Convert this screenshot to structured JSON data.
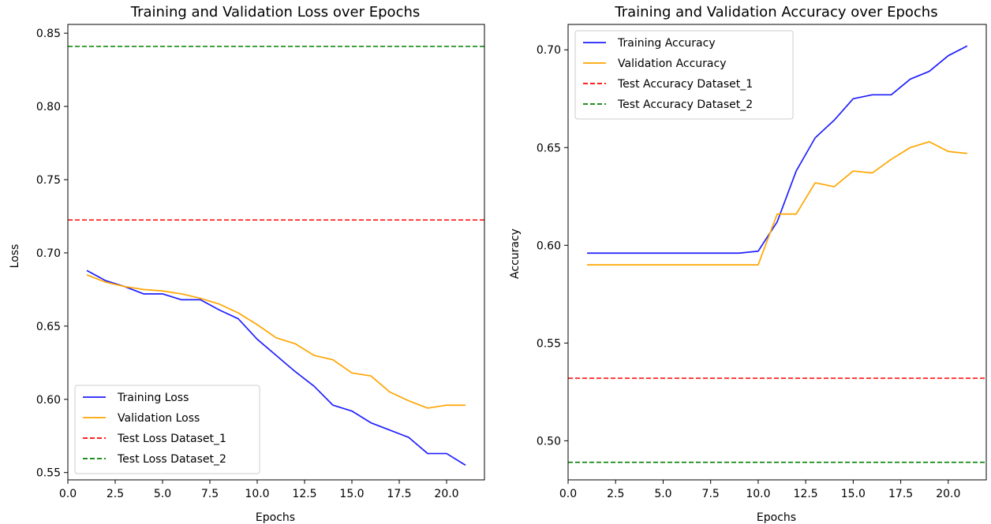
{
  "chart_data": [
    {
      "type": "line",
      "title": "Training and Validation Loss over Epochs",
      "xlabel": "Epochs",
      "ylabel": "Loss",
      "xlim": [
        0,
        22
      ],
      "ylim": [
        0.545,
        0.856
      ],
      "xticks": [
        "0.0",
        "2.5",
        "5.0",
        "7.5",
        "10.0",
        "12.5",
        "15.0",
        "17.5",
        "20.0"
      ],
      "xtick_values": [
        0,
        2.5,
        5,
        7.5,
        10,
        12.5,
        15,
        17.5,
        20
      ],
      "yticks": [
        "0.55",
        "0.60",
        "0.65",
        "0.70",
        "0.75",
        "0.80",
        "0.85"
      ],
      "ytick_values": [
        0.55,
        0.6,
        0.65,
        0.7,
        0.75,
        0.8,
        0.85
      ],
      "x": [
        1,
        2,
        3,
        4,
        5,
        6,
        7,
        8,
        9,
        10,
        11,
        12,
        13,
        14,
        15,
        16,
        17,
        18,
        19,
        20,
        21
      ],
      "series": [
        {
          "name": "Training Loss",
          "color": "#1f1fff",
          "style": "solid",
          "values": [
            0.688,
            0.681,
            0.677,
            0.672,
            0.672,
            0.668,
            0.668,
            0.661,
            0.655,
            0.641,
            0.63,
            0.619,
            0.609,
            0.596,
            0.592,
            0.584,
            0.579,
            0.574,
            0.563,
            0.563,
            0.555
          ]
        },
        {
          "name": "Validation Loss",
          "color": "#ffa500",
          "style": "solid",
          "values": [
            0.685,
            0.68,
            0.677,
            0.675,
            0.674,
            0.672,
            0.669,
            0.665,
            0.659,
            0.651,
            0.642,
            0.638,
            0.63,
            0.627,
            0.618,
            0.616,
            0.605,
            0.599,
            0.594,
            0.596,
            0.596
          ]
        }
      ],
      "hlines": [
        {
          "name": "Test Loss Dataset_1",
          "color": "#ff0000",
          "value": 0.7225
        },
        {
          "name": "Test Loss Dataset_2",
          "color": "#008000",
          "value": 0.841
        }
      ],
      "legend_position": "lower-left"
    },
    {
      "type": "line",
      "title": "Training and Validation Accuracy over Epochs",
      "xlabel": "Epochs",
      "ylabel": "Accuracy",
      "xlim": [
        0,
        22
      ],
      "ylim": [
        0.48,
        0.713
      ],
      "xticks": [
        "0.0",
        "2.5",
        "5.0",
        "7.5",
        "10.0",
        "12.5",
        "15.0",
        "17.5",
        "20.0"
      ],
      "xtick_values": [
        0,
        2.5,
        5,
        7.5,
        10,
        12.5,
        15,
        17.5,
        20
      ],
      "yticks": [
        "0.50",
        "0.55",
        "0.60",
        "0.65",
        "0.70"
      ],
      "ytick_values": [
        0.5,
        0.55,
        0.6,
        0.65,
        0.7
      ],
      "x": [
        1,
        2,
        3,
        4,
        5,
        6,
        7,
        8,
        9,
        10,
        11,
        12,
        13,
        14,
        15,
        16,
        17,
        18,
        19,
        20,
        21
      ],
      "series": [
        {
          "name": "Training Accuracy",
          "color": "#1f1fff",
          "style": "solid",
          "values": [
            0.596,
            0.596,
            0.596,
            0.596,
            0.596,
            0.596,
            0.596,
            0.596,
            0.596,
            0.597,
            0.612,
            0.638,
            0.655,
            0.664,
            0.675,
            0.677,
            0.677,
            0.685,
            0.689,
            0.697,
            0.702
          ]
        },
        {
          "name": "Validation Accuracy",
          "color": "#ffa500",
          "style": "solid",
          "values": [
            0.59,
            0.59,
            0.59,
            0.59,
            0.59,
            0.59,
            0.59,
            0.59,
            0.59,
            0.59,
            0.616,
            0.616,
            0.632,
            0.63,
            0.638,
            0.637,
            0.644,
            0.65,
            0.653,
            0.648,
            0.647
          ]
        }
      ],
      "hlines": [
        {
          "name": "Test Accuracy Dataset_1",
          "color": "#ff0000",
          "value": 0.532
        },
        {
          "name": "Test Accuracy Dataset_2",
          "color": "#008000",
          "value": 0.489
        }
      ],
      "legend_position": "upper-left"
    }
  ]
}
